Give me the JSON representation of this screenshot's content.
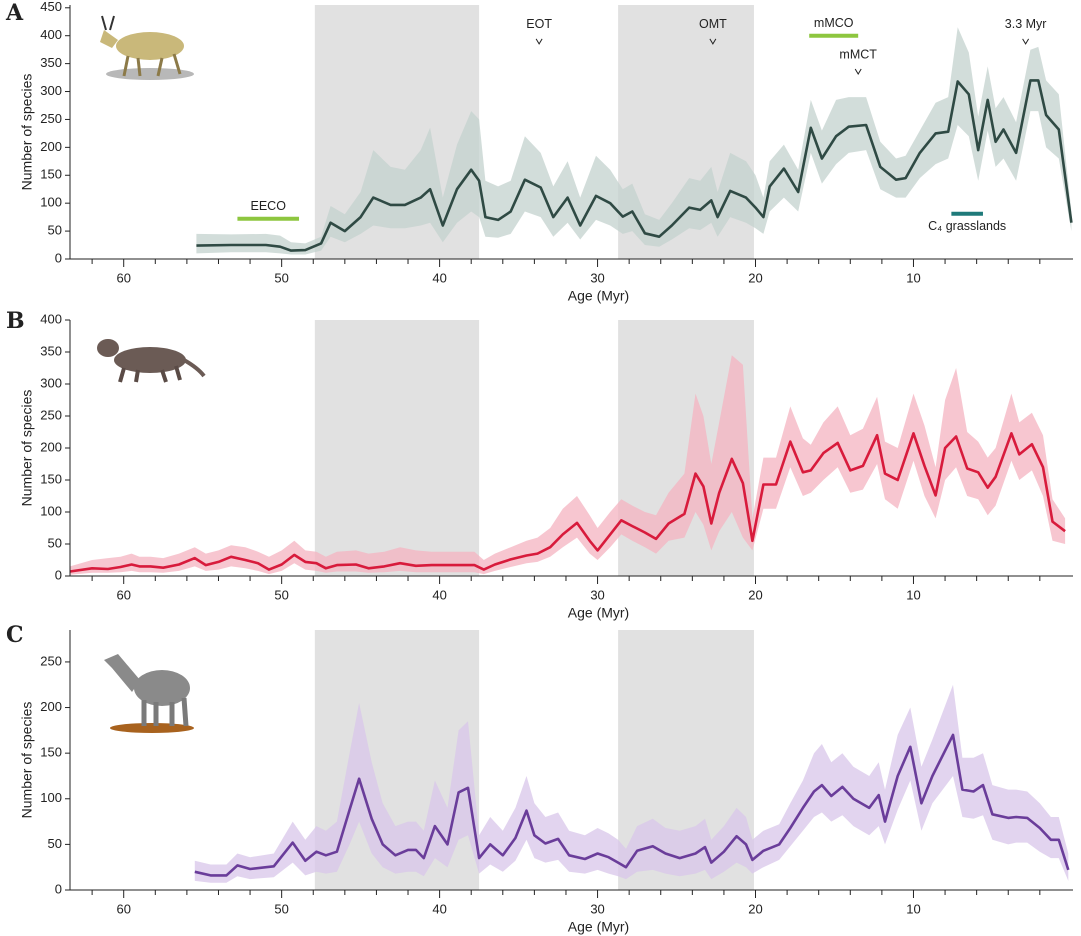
{
  "chart_data": [
    {
      "type": "line",
      "panel": "A",
      "xlabel": "Age (Myr)",
      "ylabel": "Number of species",
      "xlim": [
        63.4,
        -0.1
      ],
      "ylim": [
        0,
        455
      ],
      "xticks": [
        60,
        50,
        40,
        30,
        20,
        10
      ],
      "xminorticks": [
        62,
        58,
        56,
        54,
        52,
        48,
        46,
        44,
        42,
        38,
        36,
        34,
        32,
        28,
        26,
        24,
        22,
        18,
        16,
        14,
        12,
        8,
        6,
        4,
        2
      ],
      "yticks": [
        0,
        50,
        100,
        150,
        200,
        250,
        300,
        350,
        400,
        450
      ],
      "shaded_regions": [
        [
          47.9,
          37.5
        ],
        [
          28.7,
          20.1
        ]
      ],
      "color": "#2f4a44",
      "band_color": "#c3d2ce",
      "x": [
        55.4,
        53.2,
        51,
        50.1,
        49.4,
        48.5,
        47.5,
        46.9,
        46,
        45,
        44.2,
        43.1,
        42.2,
        41.2,
        40.6,
        39.8,
        38.9,
        38,
        37.5,
        37.1,
        36.3,
        35.5,
        34.6,
        33.6,
        32.8,
        31.9,
        31.1,
        30.1,
        29.2,
        28.4,
        27.8,
        27,
        26.1,
        25.3,
        24.2,
        23.5,
        22.8,
        22.4,
        21.6,
        20.6,
        20,
        19.5,
        19.1,
        18.2,
        17.3,
        16.5,
        15.8,
        14.9,
        14.1,
        13,
        12.1,
        11.1,
        10.5,
        9.6,
        8.6,
        7.8,
        7.2,
        6.5,
        5.9,
        5.3,
        4.8,
        4.3,
        3.5,
        2.6,
        2.1,
        1.6,
        0.8,
        0
      ],
      "values": [
        24,
        25,
        25,
        22,
        15,
        16,
        28,
        65,
        50,
        75,
        110,
        97,
        97,
        110,
        125,
        60,
        125,
        160,
        140,
        75,
        70,
        85,
        142,
        128,
        75,
        110,
        60,
        113,
        100,
        76,
        85,
        46,
        40,
        60,
        92,
        88,
        105,
        75,
        122,
        110,
        92,
        75,
        130,
        162,
        120,
        235,
        180,
        220,
        237,
        240,
        165,
        142,
        145,
        190,
        225,
        228,
        318,
        295,
        195,
        285,
        210,
        232,
        190,
        320,
        320,
        258,
        232,
        65
      ],
      "lower": [
        10,
        12,
        12,
        10,
        8,
        8,
        15,
        40,
        30,
        45,
        60,
        55,
        55,
        60,
        65,
        30,
        65,
        85,
        75,
        40,
        38,
        45,
        85,
        75,
        40,
        65,
        35,
        70,
        60,
        45,
        50,
        25,
        22,
        35,
        55,
        52,
        65,
        40,
        75,
        65,
        55,
        45,
        85,
        110,
        85,
        190,
        135,
        170,
        190,
        195,
        125,
        110,
        110,
        145,
        170,
        180,
        240,
        220,
        140,
        230,
        165,
        180,
        140,
        265,
        265,
        200,
        180,
        50
      ],
      "upper": [
        45,
        44,
        45,
        42,
        30,
        28,
        40,
        95,
        80,
        120,
        195,
        165,
        160,
        195,
        235,
        110,
        205,
        265,
        250,
        140,
        130,
        140,
        220,
        190,
        130,
        175,
        110,
        185,
        160,
        125,
        135,
        80,
        70,
        100,
        145,
        140,
        165,
        120,
        190,
        175,
        150,
        110,
        175,
        205,
        160,
        285,
        230,
        285,
        290,
        290,
        210,
        180,
        185,
        230,
        280,
        290,
        415,
        370,
        255,
        345,
        270,
        290,
        245,
        375,
        380,
        320,
        295,
        85
      ],
      "annotations": [
        {
          "text": "EECO",
          "kind": "bar",
          "span": [
            52.8,
            48.9
          ],
          "y": 72,
          "color": "#8dc63f"
        },
        {
          "text": "EOT",
          "kind": "arrow",
          "x": 33.7,
          "y": 389
        },
        {
          "text": "OMT",
          "kind": "arrow",
          "x": 22.7,
          "y": 389
        },
        {
          "text": "mMCO",
          "kind": "bar",
          "span": [
            16.6,
            13.5
          ],
          "y": 400,
          "color": "#8dc63f"
        },
        {
          "text": "mMCT",
          "kind": "arrow",
          "x": 13.5,
          "y": 335
        },
        {
          "text": "3.3 Myr",
          "kind": "arrow",
          "x": 2.9,
          "y": 389
        },
        {
          "text": "C₄ grasslands",
          "kind": "bar",
          "span": [
            7.6,
            5.6
          ],
          "y": 81,
          "color": "#1f7a7a",
          "label_side": "below"
        }
      ]
    },
    {
      "type": "line",
      "panel": "B",
      "xlabel": "Age (Myr)",
      "ylabel": "Number of species",
      "xlim": [
        63.4,
        -0.1
      ],
      "ylim": [
        0,
        400
      ],
      "xticks": [
        60,
        50,
        40,
        30,
        20,
        10
      ],
      "xminorticks": [
        62,
        58,
        56,
        54,
        52,
        48,
        46,
        44,
        42,
        38,
        36,
        34,
        32,
        28,
        26,
        24,
        22,
        18,
        16,
        14,
        12,
        8,
        6,
        4,
        2
      ],
      "yticks": [
        0,
        50,
        100,
        150,
        200,
        250,
        300,
        350,
        400
      ],
      "shaded_regions": [
        [
          47.9,
          37.5
        ],
        [
          28.7,
          20.1
        ]
      ],
      "color": "#d81b3c",
      "band_color": "#f4b3c0",
      "x": [
        63.4,
        62,
        61,
        60.2,
        59.5,
        59,
        58.3,
        57.5,
        56.5,
        55.5,
        54.8,
        54,
        53.2,
        52.3,
        51.5,
        50.8,
        50,
        49.2,
        48.5,
        47.8,
        47.2,
        46.5,
        45.3,
        44.5,
        43.5,
        42.5,
        41.5,
        40.5,
        39.5,
        38.5,
        37.8,
        37.2,
        36.5,
        35.5,
        34.5,
        33.8,
        33,
        32.2,
        31.3,
        30.5,
        30,
        29.2,
        28.5,
        27.8,
        27,
        26.3,
        25.5,
        24.5,
        23.8,
        23.3,
        22.8,
        22.3,
        21.5,
        20.8,
        20.2,
        19.5,
        18.7,
        17.8,
        17,
        16.5,
        15.7,
        14.8,
        14,
        13.2,
        12.3,
        11.8,
        11,
        10,
        9.3,
        8.6,
        8,
        7.3,
        6.6,
        5.9,
        5.3,
        4.8,
        3.8,
        3.3,
        2.5,
        1.8,
        1.2,
        0.4
      ],
      "values": [
        7,
        12,
        11,
        14,
        18,
        15,
        15,
        13,
        18,
        28,
        17,
        22,
        30,
        25,
        20,
        10,
        18,
        33,
        22,
        20,
        12,
        17,
        18,
        12,
        15,
        20,
        16,
        17,
        17,
        17,
        17,
        10,
        18,
        26,
        32,
        35,
        45,
        65,
        83,
        55,
        40,
        65,
        87,
        78,
        68,
        58,
        82,
        97,
        160,
        140,
        82,
        130,
        183,
        145,
        55,
        143,
        143,
        210,
        162,
        165,
        192,
        208,
        165,
        172,
        220,
        160,
        150,
        223,
        172,
        126,
        200,
        218,
        168,
        162,
        138,
        155,
        223,
        190,
        206,
        170,
        85,
        70
      ],
      "lower": [
        2,
        5,
        5,
        6,
        8,
        6,
        6,
        5,
        8,
        15,
        8,
        10,
        15,
        12,
        8,
        3,
        8,
        20,
        10,
        8,
        5,
        7,
        7,
        5,
        6,
        8,
        6,
        6,
        6,
        6,
        6,
        3,
        8,
        14,
        20,
        22,
        30,
        45,
        60,
        35,
        25,
        45,
        65,
        55,
        45,
        35,
        55,
        60,
        100,
        80,
        40,
        70,
        100,
        60,
        40,
        105,
        105,
        170,
        125,
        130,
        150,
        170,
        130,
        135,
        175,
        120,
        105,
        180,
        125,
        90,
        150,
        170,
        125,
        120,
        95,
        110,
        180,
        150,
        165,
        125,
        55,
        50
      ],
      "upper": [
        15,
        25,
        28,
        30,
        35,
        30,
        30,
        28,
        35,
        45,
        35,
        40,
        48,
        45,
        38,
        30,
        40,
        55,
        40,
        38,
        30,
        38,
        40,
        35,
        38,
        45,
        40,
        38,
        38,
        38,
        38,
        25,
        35,
        45,
        55,
        60,
        75,
        105,
        125,
        95,
        75,
        100,
        120,
        110,
        100,
        95,
        130,
        160,
        285,
        250,
        175,
        240,
        345,
        330,
        90,
        185,
        185,
        265,
        215,
        205,
        240,
        265,
        220,
        230,
        280,
        210,
        200,
        285,
        235,
        170,
        275,
        325,
        225,
        210,
        185,
        200,
        285,
        240,
        255,
        220,
        120,
        90
      ]
    },
    {
      "type": "line",
      "panel": "C",
      "xlabel": "Age (Myr)",
      "ylabel": "Number of species",
      "xlim": [
        63.4,
        -0.1
      ],
      "ylim": [
        0,
        285
      ],
      "xticks": [
        60,
        50,
        40,
        30,
        20,
        10
      ],
      "xminorticks": [
        62,
        58,
        56,
        54,
        52,
        48,
        46,
        44,
        42,
        38,
        36,
        34,
        32,
        28,
        26,
        24,
        22,
        18,
        16,
        14,
        12,
        8,
        6,
        4,
        2
      ],
      "yticks": [
        0,
        50,
        100,
        150,
        200,
        250
      ],
      "shaded_regions": [
        [
          47.9,
          37.5
        ],
        [
          28.7,
          20.1
        ]
      ],
      "color": "#6a3d9a",
      "band_color": "#d8c6ea",
      "x": [
        55.5,
        54.5,
        53.5,
        52.8,
        52,
        50.5,
        49.3,
        48.5,
        47.8,
        47.2,
        46.5,
        45.7,
        45.1,
        44.3,
        43.6,
        42.8,
        42,
        41.5,
        41,
        40.3,
        39.5,
        38.8,
        38.2,
        37.5,
        36.8,
        36,
        35.2,
        34.5,
        34,
        33.3,
        32.5,
        31.8,
        30.8,
        30,
        29.3,
        28.7,
        28.2,
        27.5,
        26.5,
        25.7,
        24.8,
        23.8,
        23.2,
        22.8,
        22,
        21.2,
        20.6,
        20.2,
        19.5,
        18.5,
        17.8,
        17,
        16.3,
        15.8,
        15.2,
        14.5,
        13.8,
        12.8,
        12.2,
        11.8,
        11,
        10.2,
        9.5,
        8.8,
        7.5,
        6.9,
        6.2,
        5.6,
        5,
        4,
        3.5,
        2.8,
        2,
        1.3,
        0.8,
        0.2
      ],
      "values": [
        20,
        16,
        16,
        27,
        23,
        26,
        52,
        32,
        42,
        38,
        42,
        88,
        122,
        78,
        50,
        38,
        44,
        44,
        35,
        70,
        50,
        107,
        112,
        35,
        50,
        38,
        57,
        87,
        60,
        51,
        56,
        38,
        34,
        40,
        36,
        30,
        25,
        43,
        48,
        40,
        35,
        40,
        47,
        30,
        42,
        59,
        50,
        33,
        43,
        50,
        68,
        90,
        108,
        115,
        103,
        113,
        100,
        90,
        104,
        75,
        125,
        157,
        95,
        125,
        170,
        110,
        108,
        115,
        83,
        79,
        80,
        79,
        68,
        55,
        55,
        22
      ],
      "lower": [
        10,
        8,
        8,
        15,
        12,
        14,
        30,
        16,
        20,
        18,
        20,
        50,
        75,
        40,
        25,
        18,
        20,
        20,
        15,
        35,
        25,
        55,
        60,
        18,
        28,
        20,
        32,
        55,
        35,
        30,
        33,
        20,
        18,
        22,
        18,
        15,
        12,
        20,
        22,
        18,
        15,
        18,
        22,
        12,
        20,
        30,
        25,
        18,
        25,
        33,
        48,
        65,
        80,
        85,
        75,
        82,
        70,
        60,
        70,
        50,
        88,
        120,
        65,
        95,
        125,
        80,
        78,
        82,
        55,
        50,
        52,
        52,
        42,
        35,
        35,
        10
      ],
      "upper": [
        32,
        28,
        28,
        40,
        36,
        40,
        75,
        55,
        70,
        65,
        75,
        150,
        205,
        140,
        95,
        70,
        75,
        75,
        65,
        120,
        90,
        175,
        185,
        60,
        80,
        65,
        90,
        125,
        95,
        80,
        85,
        65,
        60,
        68,
        62,
        55,
        45,
        70,
        78,
        68,
        65,
        70,
        78,
        55,
        70,
        90,
        80,
        55,
        65,
        72,
        95,
        120,
        150,
        160,
        140,
        150,
        135,
        125,
        140,
        110,
        170,
        200,
        135,
        165,
        225,
        145,
        145,
        150,
        115,
        110,
        110,
        108,
        95,
        80,
        80,
        40
      ]
    }
  ]
}
